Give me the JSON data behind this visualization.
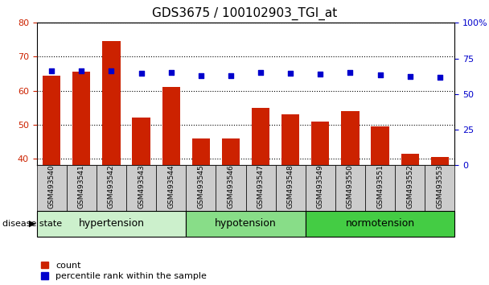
{
  "title": "GDS3675 / 100102903_TGI_at",
  "samples": [
    "GSM493540",
    "GSM493541",
    "GSM493542",
    "GSM493543",
    "GSM493544",
    "GSM493545",
    "GSM493546",
    "GSM493547",
    "GSM493548",
    "GSM493549",
    "GSM493550",
    "GSM493551",
    "GSM493552",
    "GSM493553"
  ],
  "counts": [
    64.5,
    65.5,
    74.5,
    52.0,
    61.0,
    46.0,
    46.0,
    55.0,
    53.0,
    51.0,
    54.0,
    49.5,
    41.5,
    40.5
  ],
  "percentiles": [
    66.5,
    66.5,
    66.5,
    64.5,
    65.0,
    63.0,
    63.0,
    65.0,
    64.5,
    64.0,
    65.0,
    63.5,
    62.5,
    62.0
  ],
  "groups": [
    {
      "label": "hypertension",
      "start": 0,
      "end": 5,
      "color": "#ccf0cc"
    },
    {
      "label": "hypotension",
      "start": 5,
      "end": 9,
      "color": "#88dd88"
    },
    {
      "label": "normotension",
      "start": 9,
      "end": 14,
      "color": "#44cc44"
    }
  ],
  "ylim_left": [
    38,
    80
  ],
  "ylim_right": [
    0,
    100
  ],
  "bar_color": "#cc2200",
  "dot_color": "#0000cc",
  "bar_width": 0.6,
  "tick_bg_color": "#cccccc",
  "grid_color": "#000000",
  "title_fontsize": 11,
  "tick_label_fontsize": 6.5,
  "legend_fontsize": 8,
  "group_label_fontsize": 9,
  "disease_label_fontsize": 8
}
